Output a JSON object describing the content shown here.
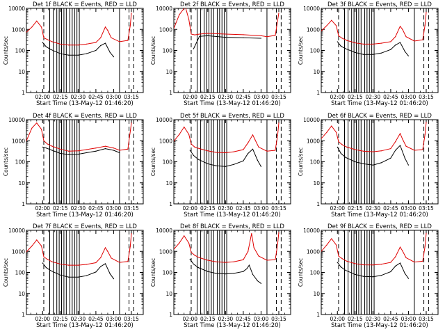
{
  "figure": {
    "ylabel": "Counts/sec",
    "xlabel": "Start Time (13-May-12 01:46:20)",
    "title_suffix": "BLACK = Events, RED = LLD",
    "x_ticks": [
      "02:00",
      "02:15",
      "02:30",
      "02:45",
      "03:00",
      "03:15"
    ],
    "y_ticks": [
      "1",
      "10",
      "100",
      "1000",
      "10000"
    ],
    "colors": {
      "events": "#000000",
      "lld": "#e00000"
    }
  },
  "chart_data": [
    {
      "type": "line",
      "title": "Det 1f BLACK = Events, RED = LLD",
      "xlabel": "Start Time (13-May-12 01:46:20)",
      "ylabel": "Counts/sec",
      "x_range": [
        "01:46:20",
        "03:25:00"
      ],
      "y_scale": "log",
      "ylim": [
        1,
        10000
      ],
      "series": [
        {
          "name": "Events",
          "x": [
            "02:00",
            "02:03",
            "02:07",
            "02:15",
            "02:22",
            "02:30",
            "02:37",
            "02:45",
            "02:49",
            "02:53",
            "02:57",
            "03:00"
          ],
          "y": [
            240,
            150,
            110,
            70,
            60,
            60,
            70,
            100,
            170,
            220,
            80,
            50
          ]
        },
        {
          "name": "LLD",
          "x": [
            "01:46",
            "01:51",
            "01:55",
            "01:59",
            "02:01",
            "02:04",
            "02:08",
            "02:15",
            "02:22",
            "02:30",
            "02:37",
            "02:45",
            "02:49",
            "02:53",
            "02:55",
            "02:58",
            "03:05",
            "03:12",
            "03:14",
            "03:15"
          ],
          "y": [
            700,
            1300,
            2500,
            1300,
            400,
            330,
            260,
            200,
            180,
            180,
            200,
            240,
            400,
            1300,
            900,
            400,
            260,
            300,
            1500,
            6000
          ]
        }
      ]
    },
    {
      "type": "line",
      "title": "Det 2f BLACK = Events, RED = LLD",
      "xlabel": "Start Time (13-May-12 01:46:20)",
      "ylabel": "Counts/sec",
      "x_range": [
        "01:46:20",
        "03:25:00"
      ],
      "y_scale": "log",
      "ylim": [
        1,
        10000
      ],
      "series": [
        {
          "name": "Events",
          "x": [
            "02:03",
            "02:08",
            "02:15",
            "02:30",
            "02:45",
            "03:00"
          ],
          "y": [
            120,
            470,
            500,
            420,
            400,
            380
          ]
        },
        {
          "name": "LLD",
          "x": [
            "01:46",
            "01:51",
            "01:56",
            "01:59",
            "02:01",
            "02:04",
            "02:08",
            "02:15",
            "02:30",
            "02:45",
            "03:00",
            "03:05",
            "03:12",
            "03:15"
          ],
          "y": [
            1000,
            5000,
            12000,
            3000,
            600,
            550,
            600,
            650,
            600,
            560,
            500,
            450,
            520,
            6000
          ]
        }
      ]
    },
    {
      "type": "line",
      "title": "Det 3f BLACK = Events, RED = LLD",
      "xlabel": "Start Time (13-May-12 01:46:20)",
      "ylabel": "Counts/sec",
      "x_range": [
        "01:46:20",
        "03:25:00"
      ],
      "y_scale": "log",
      "ylim": [
        1,
        10000
      ],
      "series": [
        {
          "name": "Events",
          "x": [
            "02:00",
            "02:03",
            "02:07",
            "02:15",
            "02:22",
            "02:30",
            "02:37",
            "02:45",
            "02:49",
            "02:53",
            "02:57",
            "03:00"
          ],
          "y": [
            260,
            160,
            120,
            80,
            65,
            65,
            75,
            110,
            180,
            240,
            90,
            55
          ]
        },
        {
          "name": "LLD",
          "x": [
            "01:46",
            "01:51",
            "01:55",
            "01:59",
            "02:01",
            "02:04",
            "02:08",
            "02:15",
            "02:22",
            "02:30",
            "02:37",
            "02:45",
            "02:49",
            "02:53",
            "02:55",
            "02:58",
            "03:05",
            "03:12",
            "03:14",
            "03:15"
          ],
          "y": [
            800,
            1500,
            2700,
            1500,
            500,
            380,
            300,
            230,
            200,
            200,
            220,
            260,
            450,
            1400,
            1000,
            450,
            280,
            320,
            1600,
            6500
          ]
        }
      ]
    },
    {
      "type": "line",
      "title": "Det 4f BLACK = Events, RED = LLD",
      "xlabel": "Start Time (13-May-12 01:46:20)",
      "ylabel": "Counts/sec",
      "x_range": [
        "01:46:20",
        "03:25:00"
      ],
      "y_scale": "log",
      "ylim": [
        1,
        10000
      ],
      "series": [
        {
          "name": "Events",
          "x": [
            "02:00",
            "02:03",
            "02:08",
            "02:15",
            "02:22",
            "02:30",
            "02:37",
            "02:45",
            "02:53",
            "03:00",
            "03:05"
          ],
          "y": [
            500,
            450,
            350,
            250,
            220,
            230,
            270,
            320,
            420,
            350,
            270
          ]
        },
        {
          "name": "LLD",
          "x": [
            "01:46",
            "01:51",
            "01:55",
            "01:59",
            "02:01",
            "02:04",
            "02:08",
            "02:15",
            "02:22",
            "02:30",
            "02:37",
            "02:45",
            "02:53",
            "03:00",
            "03:05",
            "03:12",
            "03:15"
          ],
          "y": [
            900,
            4000,
            7000,
            3500,
            1000,
            700,
            550,
            400,
            320,
            330,
            380,
            450,
            550,
            450,
            350,
            400,
            7000
          ]
        }
      ]
    },
    {
      "type": "line",
      "title": "Det 5f BLACK = Events, RED = LLD",
      "xlabel": "Start Time (13-May-12 01:46:20)",
      "ylabel": "Counts/sec",
      "x_range": [
        "01:46:20",
        "03:25:00"
      ],
      "y_scale": "log",
      "ylim": [
        1,
        10000
      ],
      "series": [
        {
          "name": "Events",
          "x": [
            "02:00",
            "02:03",
            "02:07",
            "02:15",
            "02:22",
            "02:30",
            "02:37",
            "02:45",
            "02:49",
            "02:53",
            "02:57",
            "03:00"
          ],
          "y": [
            350,
            200,
            130,
            80,
            65,
            60,
            75,
            110,
            250,
            400,
            120,
            60
          ]
        },
        {
          "name": "LLD",
          "x": [
            "01:46",
            "01:51",
            "01:55",
            "01:59",
            "02:01",
            "02:04",
            "02:08",
            "02:15",
            "02:22",
            "02:30",
            "02:37",
            "02:45",
            "02:49",
            "02:53",
            "02:55",
            "02:58",
            "03:05",
            "03:12",
            "03:14",
            "03:15"
          ],
          "y": [
            900,
            2000,
            4500,
            2000,
            700,
            500,
            420,
            330,
            280,
            270,
            300,
            380,
            800,
            1900,
            1100,
            500,
            320,
            350,
            1800,
            7000
          ]
        }
      ]
    },
    {
      "type": "line",
      "title": "Det 6f BLACK = Events, RED = LLD",
      "xlabel": "Start Time (13-May-12 01:46:20)",
      "ylabel": "Counts/sec",
      "x_range": [
        "01:46:20",
        "03:25:00"
      ],
      "y_scale": "log",
      "ylim": [
        1,
        10000
      ],
      "series": [
        {
          "name": "Events",
          "x": [
            "02:00",
            "02:03",
            "02:07",
            "02:15",
            "02:22",
            "02:30",
            "02:37",
            "02:45",
            "02:49",
            "02:53",
            "02:57",
            "03:00"
          ],
          "y": [
            500,
            250,
            160,
            100,
            80,
            70,
            90,
            150,
            350,
            600,
            150,
            70
          ]
        },
        {
          "name": "LLD",
          "x": [
            "01:46",
            "01:51",
            "01:55",
            "01:59",
            "02:01",
            "02:04",
            "02:08",
            "02:15",
            "02:22",
            "02:30",
            "02:37",
            "02:45",
            "02:49",
            "02:53",
            "02:55",
            "02:58",
            "03:05",
            "03:12",
            "03:14",
            "03:15"
          ],
          "y": [
            1200,
            2500,
            5000,
            2500,
            900,
            650,
            500,
            380,
            320,
            300,
            330,
            420,
            900,
            2200,
            1200,
            550,
            350,
            380,
            2000,
            7500
          ]
        }
      ]
    },
    {
      "type": "line",
      "title": "Det 7f BLACK = Events, RED = LLD",
      "xlabel": "Start Time (13-May-12 01:46:20)",
      "ylabel": "Counts/sec",
      "x_range": [
        "01:46:20",
        "03:25:00"
      ],
      "y_scale": "log",
      "ylim": [
        1,
        10000
      ],
      "series": [
        {
          "name": "Events",
          "x": [
            "02:00",
            "02:03",
            "02:07",
            "02:15",
            "02:22",
            "02:30",
            "02:37",
            "02:45",
            "02:49",
            "02:53",
            "02:57",
            "03:00"
          ],
          "y": [
            280,
            170,
            120,
            75,
            60,
            60,
            70,
            105,
            190,
            260,
            85,
            50
          ]
        },
        {
          "name": "LLD",
          "x": [
            "01:46",
            "01:51",
            "01:55",
            "01:59",
            "02:01",
            "02:04",
            "02:08",
            "02:15",
            "02:22",
            "02:30",
            "02:37",
            "02:45",
            "02:49",
            "02:53",
            "02:55",
            "02:58",
            "03:05",
            "03:12",
            "03:14",
            "03:15"
          ],
          "y": [
            900,
            1800,
            3500,
            1800,
            550,
            420,
            320,
            250,
            220,
            220,
            240,
            290,
            500,
            1500,
            1000,
            480,
            300,
            330,
            1700,
            7000
          ]
        }
      ]
    },
    {
      "type": "line",
      "title": "Det 8f BLACK = Events, RED = LLD",
      "xlabel": "Start Time (13-May-12 01:46:20)",
      "ylabel": "Counts/sec",
      "x_range": [
        "01:46:20",
        "03:25:00"
      ],
      "y_scale": "log",
      "ylim": [
        1,
        10000
      ],
      "series": [
        {
          "name": "Events",
          "x": [
            "02:00",
            "02:03",
            "02:07",
            "02:15",
            "02:22",
            "02:30",
            "02:37",
            "02:45",
            "02:48",
            "02:50",
            "02:53",
            "02:57",
            "03:00"
          ],
          "y": [
            420,
            250,
            170,
            110,
            90,
            85,
            90,
            110,
            150,
            220,
            80,
            40,
            30
          ]
        },
        {
          "name": "LLD",
          "x": [
            "01:46",
            "01:51",
            "01:55",
            "01:59",
            "02:01",
            "02:04",
            "02:08",
            "02:15",
            "02:22",
            "02:30",
            "02:37",
            "02:45",
            "02:49",
            "02:52",
            "02:54",
            "02:58",
            "03:05",
            "03:12",
            "03:14",
            "03:15"
          ],
          "y": [
            1200,
            2500,
            5500,
            2500,
            900,
            650,
            500,
            380,
            320,
            300,
            320,
            400,
            1000,
            7000,
            1500,
            600,
            380,
            400,
            2200,
            8000
          ]
        }
      ]
    },
    {
      "type": "line",
      "title": "Det 9f BLACK = Events, RED = LLD",
      "xlabel": "Start Time (13-May-12 01:46:20)",
      "ylabel": "Counts/sec",
      "x_range": [
        "01:46:20",
        "03:25:00"
      ],
      "y_scale": "log",
      "ylim": [
        1,
        10000
      ],
      "series": [
        {
          "name": "Events",
          "x": [
            "02:00",
            "02:03",
            "02:07",
            "02:15",
            "02:22",
            "02:30",
            "02:37",
            "02:45",
            "02:49",
            "02:53",
            "02:57",
            "03:00"
          ],
          "y": [
            300,
            180,
            125,
            80,
            65,
            62,
            72,
            108,
            200,
            280,
            90,
            52
          ]
        },
        {
          "name": "LLD",
          "x": [
            "01:46",
            "01:51",
            "01:55",
            "01:59",
            "02:01",
            "02:04",
            "02:08",
            "02:15",
            "02:22",
            "02:30",
            "02:37",
            "02:45",
            "02:49",
            "02:53",
            "02:55",
            "02:58",
            "03:05",
            "03:12",
            "03:14",
            "03:15"
          ],
          "y": [
            950,
            2000,
            4000,
            2000,
            600,
            450,
            340,
            260,
            230,
            225,
            245,
            300,
            550,
            1600,
            1050,
            500,
            310,
            340,
            1750,
            7200
          ]
        }
      ]
    }
  ]
}
